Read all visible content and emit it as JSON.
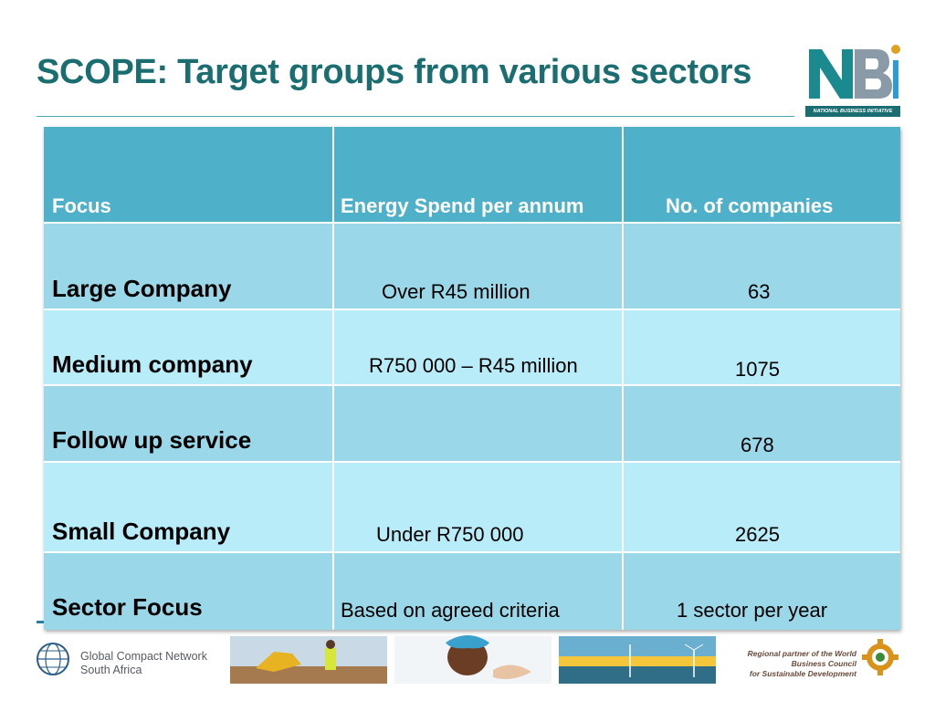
{
  "title": "SCOPE: Target groups from various sectors",
  "logo": {
    "letters": "NBI",
    "tagline": "NATIONAL BUSINESS INITIATIVE"
  },
  "table": {
    "headers": [
      "Focus",
      "Energy Spend per annum",
      "No. of companies"
    ],
    "rows": [
      {
        "focus": "Large Company",
        "spend": "Over  R45 million",
        "count": "63"
      },
      {
        "focus": "Medium company",
        "spend": "R750 000 – R45 million",
        "count": "1075"
      },
      {
        "focus": "Follow up service",
        "spend": "",
        "count": "678"
      },
      {
        "focus": "Small Company",
        "spend": "Under R750 000",
        "count": "2625"
      },
      {
        "focus": "Sector Focus",
        "spend": "Based on agreed criteria",
        "count": "1 sector per year"
      }
    ]
  },
  "footer": {
    "gcn_line1": "Global Compact Network",
    "gcn_line2": "South Africa",
    "wbcsd_line1": "Regional partner of the World Business Council",
    "wbcsd_line2": "for Sustainable Development"
  },
  "colors": {
    "title": "#1a6e72",
    "header_bg": "#4eb0c9",
    "row_dark": "#9ad7e8",
    "row_light": "#b8ecf8"
  }
}
